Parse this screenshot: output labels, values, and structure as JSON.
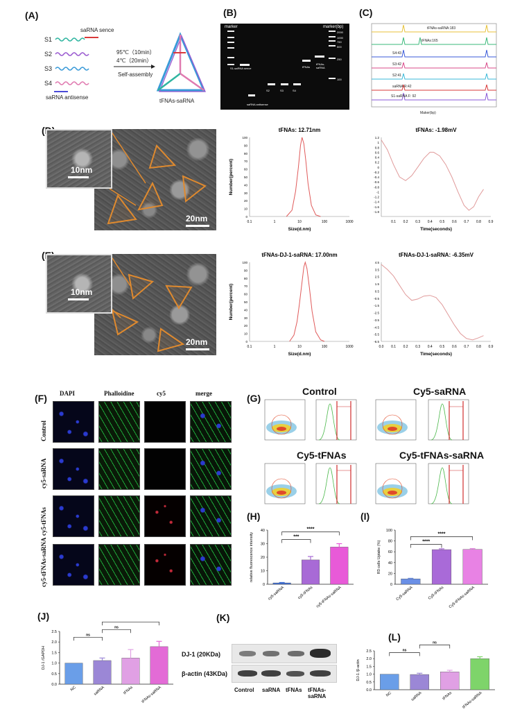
{
  "panels": {
    "A": {
      "label": "(A)",
      "strands": [
        "S1",
        "S2",
        "S3",
        "S4"
      ],
      "sense": "saRNA sence",
      "antisense": "saRNA antisense",
      "cond1": "95℃（10min）",
      "cond2": "4℃（20min）",
      "assembly": "Self-assembly",
      "product": "tFNAs-saRNA"
    },
    "B": {
      "label": "(B)",
      "marker_left": "marker",
      "marker_right": "marker(bp)",
      "lane_labels": [
        "S1-saRNA sence",
        "saRNA antisense",
        "S2",
        "S3",
        "S4",
        "tFNAs",
        "tFNAs-saRNA"
      ],
      "bp": [
        "2000",
        "1000",
        "750",
        "500",
        "250",
        "100"
      ]
    },
    "C": {
      "label": "(C)",
      "xlabel": "Maker(bp)",
      "traces": [
        "tFNAs-saRNA:183",
        "tFNAs:165",
        "S4:43",
        "S3:42",
        "S2:41",
        "saRNA R:42",
        "S1-saRNA F: 92"
      ]
    },
    "D": {
      "label": "(D)",
      "scale_small": "10nm",
      "scale_big": "20nm"
    },
    "E": {
      "label": "(E)",
      "scale_small": "10nm",
      "scale_big": "20nm"
    },
    "F": {
      "label": "(F)",
      "cols": [
        "DAPI",
        "Phalloidine",
        "cy5",
        "merge"
      ],
      "rows": [
        "Control",
        "cy5-saRNA",
        "cy5-tFNAs",
        "cy5-tFNAs-saRNA"
      ]
    },
    "G": {
      "label": "(G)",
      "titles": [
        "Control",
        "Cy5-saRNA",
        "Cy5-tFNAs",
        "Cy5-tFNAs-saRNA"
      ]
    },
    "H": {
      "label": "(H)"
    },
    "I": {
      "label": "(I)"
    },
    "J": {
      "label": "(J)"
    },
    "K": {
      "label": "(K)",
      "rows": [
        "DJ-1 (20KDa)",
        "β-actin (43KDa)"
      ],
      "lanes": [
        "Control",
        "saRNA",
        "tFNAs",
        "tFNAs-saRNA"
      ]
    },
    "L": {
      "label": "(L)"
    }
  },
  "chart_data": [
    {
      "id": "D-size",
      "type": "line",
      "title": "tFNAs: 12.71nm",
      "xlabel": "Size(d.nm)",
      "ylabel": "Number(percent)",
      "xscale": "log",
      "xlim": [
        0.1,
        1000
      ],
      "ylim": [
        0,
        100
      ],
      "xticks": [
        "0.1",
        "1",
        "10",
        "100",
        "1000"
      ],
      "yticks": [
        0,
        10,
        20,
        30,
        40,
        50,
        60,
        70,
        80,
        90,
        100
      ],
      "peak": 12.71,
      "x": [
        3,
        5,
        7,
        9,
        11,
        12.71,
        15,
        18,
        22,
        30,
        45,
        70
      ],
      "y": [
        0,
        8,
        32,
        62,
        90,
        100,
        92,
        70,
        42,
        14,
        2,
        0
      ],
      "color": "#e05a5a"
    },
    {
      "id": "D-zeta",
      "type": "line",
      "title": "tFNAs: -1.98mV",
      "xlabel": "Time(seconds)",
      "ylabel": "",
      "xlim": [
        0,
        0.9
      ],
      "ylim": [
        -2,
        1.2
      ],
      "xticks": [
        "0.1",
        "0.2",
        "0.3",
        "0.4",
        "0.5",
        "0.6",
        "0.7",
        "0.8",
        "0.9"
      ],
      "yticks": [
        "1.2",
        "1",
        "0.8",
        "0.6",
        "0.4",
        "0.2",
        "0",
        "-0.2",
        "-0.4",
        "-0.6",
        "-0.8",
        "-1",
        "-1.2",
        "-1.4",
        "-1.6",
        "-1.8"
      ],
      "x": [
        0.0,
        0.05,
        0.1,
        0.15,
        0.2,
        0.25,
        0.3,
        0.35,
        0.4,
        0.43,
        0.48,
        0.53,
        0.58,
        0.63,
        0.68,
        0.72,
        0.76,
        0.8,
        0.84
      ],
      "y": [
        1.1,
        0.7,
        0.1,
        -0.4,
        -0.55,
        -0.35,
        0.0,
        0.35,
        0.6,
        0.6,
        0.45,
        0.1,
        -0.4,
        -1.0,
        -1.55,
        -1.75,
        -1.6,
        -1.2,
        -0.9
      ],
      "color": "#e09a9a"
    },
    {
      "id": "E-size",
      "type": "line",
      "title": "tFNAs-DJ-1-saRNA: 17.00nm",
      "xlabel": "Size(d.nm)",
      "ylabel": "Number(percent)",
      "xscale": "log",
      "xlim": [
        0.1,
        1000
      ],
      "ylim": [
        0,
        100
      ],
      "xticks": [
        "0.1",
        "1",
        "10",
        "100",
        "1000"
      ],
      "yticks": [
        0,
        10,
        20,
        30,
        40,
        50,
        60,
        70,
        80,
        90,
        100
      ],
      "peak": 17.0,
      "x": [
        4,
        6,
        8,
        10,
        13,
        15,
        17,
        20,
        25,
        32,
        45,
        70,
        100
      ],
      "y": [
        0,
        8,
        25,
        48,
        78,
        94,
        100,
        92,
        68,
        38,
        12,
        2,
        0
      ],
      "color": "#e05a5a"
    },
    {
      "id": "E-zeta",
      "type": "line",
      "title": "tFNAs-DJ-1-saRNA: -6.35mV",
      "xlabel": "Time(seconds)",
      "ylabel": "",
      "xlim": [
        0,
        0.9
      ],
      "ylim": [
        -6.5,
        4.5
      ],
      "xticks": [
        "0.0",
        "0.1",
        "0.2",
        "0.3",
        "0.4",
        "0.5",
        "0.6",
        "0.7",
        "0.8",
        "0.9"
      ],
      "yticks": [
        "4.5",
        "3.5",
        "2.5",
        "1.5",
        "0.5",
        "-0.5",
        "-1.5",
        "-2.5",
        "-3.5",
        "-4.5",
        "-5.5",
        "-6.5"
      ],
      "x": [
        0.0,
        0.05,
        0.1,
        0.15,
        0.2,
        0.25,
        0.3,
        0.35,
        0.4,
        0.45,
        0.5,
        0.55,
        0.6,
        0.65,
        0.7,
        0.75,
        0.8,
        0.84
      ],
      "y": [
        4.2,
        3.5,
        2.6,
        1.3,
        0.0,
        -0.8,
        -0.6,
        -0.2,
        -0.1,
        -0.4,
        -1.4,
        -2.8,
        -4.2,
        -5.4,
        -6.1,
        -6.3,
        -6.0,
        -5.7
      ],
      "color": "#e09a9a"
    },
    {
      "id": "H",
      "type": "bar",
      "ylabel": "relative fluorescence intensity",
      "ylim": [
        0,
        40
      ],
      "yticks": [
        "0",
        "10",
        "20",
        "30",
        "40"
      ],
      "categories": [
        "cy5-saRNA",
        "cy5-tFNAs",
        "cy5-tFNAs-saRNA"
      ],
      "values": [
        1,
        18,
        27.5
      ],
      "errors": [
        0.3,
        2.5,
        2.5
      ],
      "colors": [
        "#3b6dd8",
        "#a86ad6",
        "#e85ad8"
      ],
      "brackets": [
        {
          "from": 0,
          "to": 1,
          "label": "***"
        },
        {
          "from": 0,
          "to": 2,
          "label": "****"
        }
      ]
    },
    {
      "id": "I",
      "type": "bar",
      "ylabel": "R3 cells Uptake (%)",
      "ylim": [
        0,
        100
      ],
      "yticks": [
        "0",
        "20",
        "40",
        "60",
        "80",
        "100"
      ],
      "categories": [
        "Cy5-saRNA",
        "Cy5-tFNAs",
        "Cy5-tFNAs-saRNA"
      ],
      "values": [
        10,
        64,
        64.5
      ],
      "errors": [
        1,
        1.5,
        1.5
      ],
      "colors": [
        "#6a8fe6",
        "#a96ad8",
        "#e882e4"
      ],
      "brackets": [
        {
          "from": 0,
          "to": 1,
          "label": "****"
        },
        {
          "from": 0,
          "to": 2,
          "label": "****"
        }
      ]
    },
    {
      "id": "J",
      "type": "bar",
      "ylabel": "DJ-1 /GAPDH",
      "ylim": [
        0,
        2.5
      ],
      "yticks": [
        "0.0",
        "0.5",
        "1.0",
        "1.5",
        "2.0",
        "2.5"
      ],
      "categories": [
        "NC",
        "saRNA",
        "tFNAs",
        "tFNAs-saRNA"
      ],
      "values": [
        1.0,
        1.12,
        1.24,
        1.78
      ],
      "errors": [
        0,
        0.12,
        0.4,
        0.25
      ],
      "colors": [
        "#6a9ee8",
        "#9b87d6",
        "#e0a0e4",
        "#e36bd6"
      ],
      "brackets": [
        {
          "from": 0,
          "to": 1,
          "label": "ns"
        },
        {
          "from": 1,
          "to": 2,
          "label": "ns"
        },
        {
          "from": 1,
          "to": 3,
          "label": "**"
        }
      ]
    },
    {
      "id": "L",
      "type": "bar",
      "ylabel": "DJ-1 /β-actin",
      "ylim": [
        0,
        2.5
      ],
      "yticks": [
        "0.0",
        "0.5",
        "1.0",
        "1.5",
        "2.0",
        "2.5"
      ],
      "categories": [
        "NC",
        "saRNA",
        "tFNAs",
        "tFNAs-saRNA"
      ],
      "values": [
        1.0,
        0.98,
        1.15,
        2.0
      ],
      "errors": [
        0,
        0.08,
        0.1,
        0.12
      ],
      "colors": [
        "#6a9ee8",
        "#9b87d6",
        "#e0a0e4",
        "#7ed46a"
      ],
      "brackets": [
        {
          "from": 0,
          "to": 1,
          "label": "ns"
        },
        {
          "from": 1,
          "to": 2,
          "label": "ns"
        },
        {
          "from": 1,
          "to": 3,
          "label": "**"
        }
      ]
    }
  ],
  "colors": {
    "orange": "#e08a2e",
    "dapi": "#1c2a9a",
    "phall": "#1ea83a",
    "cy5": "#c42a3a"
  }
}
